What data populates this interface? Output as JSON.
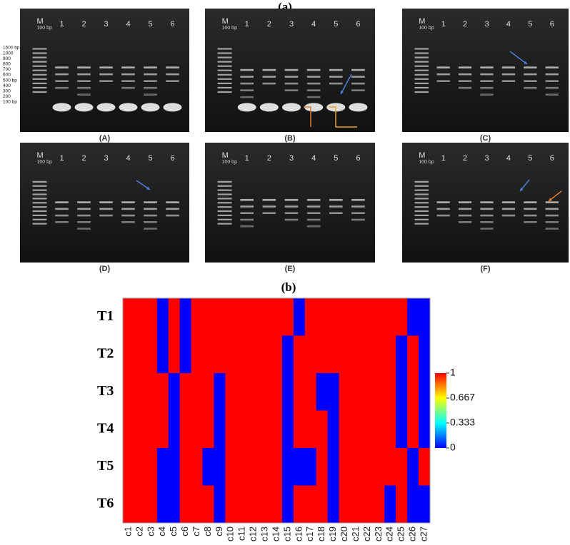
{
  "part_a_label": "(a)",
  "gels": [
    {
      "label": "(A)",
      "marker": "M",
      "marker_size": "100 bp",
      "lanes": [
        "1",
        "2",
        "3",
        "4",
        "5",
        "6"
      ],
      "ladder_labels": [
        "1500 bp",
        "1000",
        "900",
        "800",
        "700",
        "600",
        "500 bp",
        "400",
        "300",
        "200",
        "100 bp"
      ]
    },
    {
      "label": "(B)",
      "marker": "M",
      "marker_size": "100 bp",
      "lanes": [
        "1",
        "2",
        "3",
        "4",
        "5",
        "6"
      ]
    },
    {
      "label": "(C)",
      "marker": "M",
      "marker_size": "100 bp",
      "lanes": [
        "1",
        "2",
        "3",
        "4",
        "5",
        "6"
      ]
    },
    {
      "label": "(D)",
      "marker": "M",
      "marker_size": "100 bp",
      "lanes": [
        "1",
        "2",
        "3",
        "4",
        "5",
        "6"
      ]
    },
    {
      "label": "(E)",
      "marker": "M",
      "marker_size": "100 bp",
      "lanes": [
        "1",
        "2",
        "3",
        "4",
        "5",
        "6"
      ]
    },
    {
      "label": "(F)",
      "marker": "M",
      "marker_size": "100 bp",
      "lanes": [
        "1",
        "2",
        "3",
        "4",
        "5",
        "6"
      ]
    }
  ],
  "chart_data": {
    "type": "heatmap",
    "title": "(b)",
    "rows": [
      "T1",
      "T2",
      "T3",
      "T4",
      "T5",
      "T6"
    ],
    "columns": [
      "c1",
      "c2",
      "c3",
      "c4",
      "c5",
      "c6",
      "c7",
      "c8",
      "c9",
      "c10",
      "c11",
      "c12",
      "c13",
      "c14",
      "c15",
      "c16",
      "c17",
      "c18",
      "c19",
      "c20",
      "c21",
      "c22",
      "c23",
      "c24",
      "c25",
      "c26",
      "c27"
    ],
    "values": [
      [
        1,
        1,
        1,
        0,
        1,
        0,
        1,
        1,
        1,
        1,
        1,
        1,
        1,
        1,
        1,
        0,
        1,
        1,
        1,
        1,
        1,
        1,
        1,
        1,
        1,
        0,
        0
      ],
      [
        1,
        1,
        1,
        0,
        1,
        0,
        1,
        1,
        1,
        1,
        1,
        1,
        1,
        1,
        0,
        1,
        1,
        1,
        1,
        1,
        1,
        1,
        1,
        1,
        0,
        1,
        0
      ],
      [
        1,
        1,
        1,
        1,
        0,
        1,
        1,
        1,
        0,
        1,
        1,
        1,
        1,
        1,
        0,
        1,
        1,
        0,
        0,
        1,
        1,
        1,
        1,
        1,
        0,
        1,
        0
      ],
      [
        1,
        1,
        1,
        1,
        0,
        1,
        1,
        1,
        0,
        1,
        1,
        1,
        1,
        1,
        0,
        1,
        1,
        1,
        0,
        1,
        1,
        1,
        1,
        1,
        0,
        1,
        0
      ],
      [
        1,
        1,
        1,
        0,
        0,
        1,
        1,
        0,
        0,
        1,
        1,
        1,
        1,
        1,
        0,
        0,
        0,
        1,
        0,
        1,
        1,
        1,
        1,
        1,
        1,
        0,
        1
      ],
      [
        1,
        1,
        1,
        0,
        0,
        1,
        1,
        1,
        0,
        1,
        1,
        1,
        1,
        1,
        0,
        1,
        1,
        1,
        0,
        1,
        1,
        1,
        1,
        0,
        1,
        0,
        0
      ]
    ],
    "colormap": [
      "#0000ff",
      "#00ffff",
      "#ffff00",
      "#ff0000"
    ],
    "clim": [
      0,
      1
    ],
    "colorbar_ticks": [
      1,
      {
        "value": 0.667,
        "label": "0.667"
      },
      {
        "value": 0.333,
        "label": "0.333"
      },
      0
    ]
  }
}
